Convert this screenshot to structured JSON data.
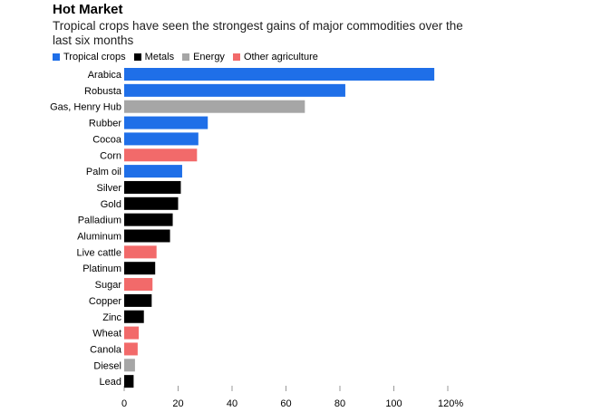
{
  "title": "Hot Market",
  "subtitle": "Tropical crops have seen the strongest gains of major commodities over the last six months",
  "legend": [
    {
      "label": "Tropical crops",
      "color": "#1f6fe8"
    },
    {
      "label": "Metals",
      "color": "#000000"
    },
    {
      "label": "Energy",
      "color": "#a6a6a6"
    },
    {
      "label": "Other agriculture",
      "color": "#f26a6a"
    }
  ],
  "chart_data": {
    "type": "bar",
    "orientation": "horizontal",
    "categories": [
      "Arabica",
      "Robusta",
      "Gas, Henry Hub",
      "Rubber",
      "Cocoa",
      "Corn",
      "Palm oil",
      "Silver",
      "Gold",
      "Palladium",
      "Aluminum",
      "Live cattle",
      "Platinum",
      "Sugar",
      "Copper",
      "Zinc",
      "Wheat",
      "Canola",
      "Diesel",
      "Lead"
    ],
    "values": [
      115,
      82,
      67,
      31,
      27.5,
      27,
      21.5,
      21,
      20,
      18,
      17,
      12,
      11.5,
      10.5,
      10.2,
      7.3,
      5.4,
      5,
      4,
      3.5
    ],
    "groups": [
      "Tropical crops",
      "Tropical crops",
      "Energy",
      "Tropical crops",
      "Tropical crops",
      "Other agriculture",
      "Tropical crops",
      "Metals",
      "Metals",
      "Metals",
      "Metals",
      "Other agriculture",
      "Metals",
      "Other agriculture",
      "Metals",
      "Metals",
      "Other agriculture",
      "Other agriculture",
      "Energy",
      "Metals"
    ],
    "xlim": [
      0,
      120
    ],
    "xticks": [
      "0",
      "20",
      "40",
      "60",
      "80",
      "100",
      "120%"
    ],
    "legend_position": "top-left"
  }
}
